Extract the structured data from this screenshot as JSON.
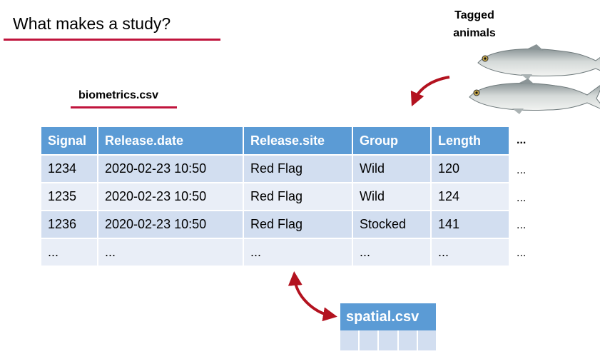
{
  "title": "What makes a study?",
  "tagged_label_line1": "Tagged",
  "tagged_label_line2": "animals",
  "biometrics": {
    "filename": "biometrics.csv",
    "headers": [
      "Signal",
      "Release.date",
      "Release.site",
      "Group",
      "Length"
    ],
    "rows": [
      [
        "1234",
        "2020-02-23 10:50",
        "Red Flag",
        "Wild",
        "120"
      ],
      [
        "1235",
        "2020-02-23 10:50",
        "Red Flag",
        "Wild",
        "124"
      ],
      [
        "1236",
        "2020-02-23 10:50",
        "Red Flag",
        "Stocked",
        "141"
      ],
      [
        "...",
        "...",
        "...",
        "...",
        "..."
      ]
    ],
    "more_columns": "...",
    "more_cells": "..."
  },
  "spatial": {
    "filename": "spatial.csv"
  },
  "colors": {
    "accent": "#c0143c",
    "header": "#5b9bd5",
    "row_dark": "#d2def0",
    "row_light": "#e9eef7"
  }
}
